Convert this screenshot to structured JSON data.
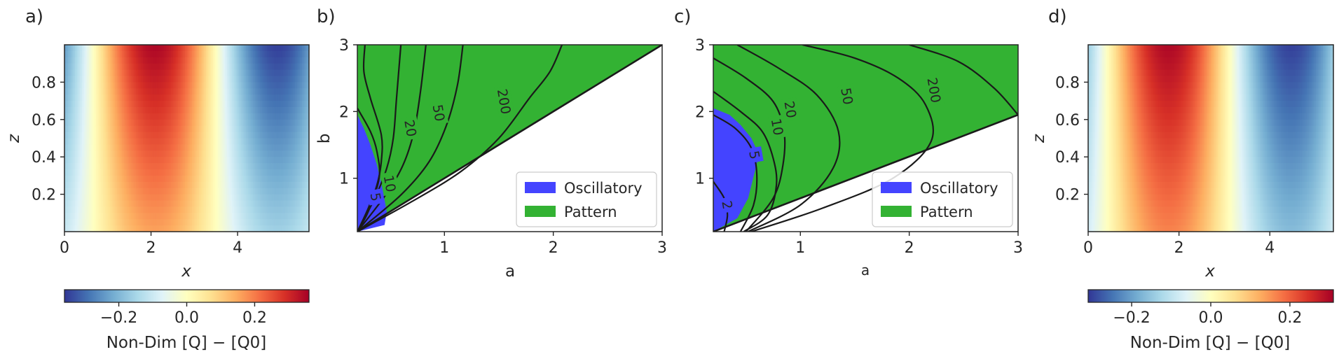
{
  "colors": {
    "oscillatory": "#4444ff",
    "pattern": "#33b233",
    "contour": "#1a1a1a",
    "colormap": "RdYlBu_r"
  },
  "chart_data": [
    {
      "panel_label": "a)",
      "type": "heatmap",
      "xlabel": "x",
      "ylabel": "z",
      "xlim": [
        0,
        5.65
      ],
      "ylim": [
        0,
        1
      ],
      "xticks": [
        "0",
        "2",
        "4"
      ],
      "xtick_values": [
        0,
        2,
        4
      ],
      "yticks": [
        "0.2",
        "0.4",
        "0.6",
        "0.8"
      ],
      "ytick_values": [
        0.2,
        0.4,
        0.6,
        0.8
      ],
      "field": "amplitude * sin(2*pi*(x - 0.68)/5.65) * (0.45 + 0.55*z)",
      "amplitude": 0.35,
      "period": 5.65,
      "colorbar": {
        "label": "Non-Dim [Q] − [Q0]",
        "range": [
          -0.36,
          0.36
        ],
        "ticks": [
          "−0.2",
          "0.0",
          "0.2"
        ],
        "tick_values": [
          -0.2,
          0.0,
          0.2
        ]
      }
    },
    {
      "panel_label": "b)",
      "type": "area",
      "xlabel": "a",
      "ylabel": "b",
      "xlim": [
        0.2,
        3
      ],
      "ylim": [
        0.2,
        3
      ],
      "xticks": [
        "1",
        "2",
        "3"
      ],
      "xtick_values": [
        1,
        2,
        3
      ],
      "yticks": [
        "1",
        "2",
        "3"
      ],
      "ytick_values": [
        1,
        2,
        3
      ],
      "regions": [
        {
          "name": "Oscillatory",
          "boundary": [
            [
              0.2,
              1.95
            ],
            [
              0.26,
              1.75
            ],
            [
              0.32,
              1.5
            ],
            [
              0.38,
              1.2
            ],
            [
              0.43,
              0.85
            ],
            [
              0.47,
              0.5
            ],
            [
              0.45,
              0.3
            ],
            [
              0.2,
              0.2
            ]
          ]
        },
        {
          "name": "Pattern",
          "boundary": [
            [
              0.2,
              0.2
            ],
            [
              3,
              3
            ],
            [
              3,
              3
            ],
            [
              0.2,
              3
            ]
          ]
        }
      ],
      "pattern_lower_edge": [
        [
          0.2,
          0.2
        ],
        [
          3,
          3
        ]
      ],
      "contours": [
        {
          "label": "",
          "points": [
            [
              0.2,
              2.05
            ],
            [
              0.32,
              1.7
            ],
            [
              0.38,
              1.4
            ],
            [
              0.4,
              1.0
            ],
            [
              0.3,
              0.5
            ],
            [
              0.2,
              0.2
            ]
          ]
        },
        {
          "label": "5",
          "points": [
            [
              0.2,
              0.2
            ],
            [
              0.3,
              0.55
            ],
            [
              0.38,
              0.9
            ],
            [
              0.42,
              1.25
            ],
            [
              0.42,
              1.65
            ],
            [
              0.32,
              2.2
            ],
            [
              0.26,
              2.6
            ],
            [
              0.27,
              3.0
            ]
          ]
        },
        {
          "label": "10",
          "points": [
            [
              0.2,
              0.2
            ],
            [
              0.36,
              0.7
            ],
            [
              0.47,
              1.15
            ],
            [
              0.53,
              1.6
            ],
            [
              0.56,
              2.2
            ],
            [
              0.6,
              3.0
            ]
          ]
        },
        {
          "label": "20",
          "points": [
            [
              0.2,
              0.2
            ],
            [
              0.46,
              0.75
            ],
            [
              0.62,
              1.2
            ],
            [
              0.72,
              1.7
            ],
            [
              0.78,
              2.3
            ],
            [
              0.83,
              3.0
            ]
          ]
        },
        {
          "label": "50",
          "points": [
            [
              0.2,
              0.2
            ],
            [
              0.6,
              0.75
            ],
            [
              0.86,
              1.25
            ],
            [
              1.02,
              1.8
            ],
            [
              1.12,
              2.4
            ],
            [
              1.17,
              3.0
            ]
          ]
        },
        {
          "label": "200",
          "points": [
            [
              0.2,
              0.2
            ],
            [
              0.7,
              0.65
            ],
            [
              1.15,
              1.1
            ],
            [
              1.5,
              1.6
            ],
            [
              1.78,
              2.2
            ],
            [
              1.97,
              2.6
            ],
            [
              2.08,
              3.0
            ]
          ]
        }
      ],
      "contour_label_positions": {
        "5": [
          0.37,
          0.72
        ],
        "10": [
          0.5,
          0.92
        ],
        "20": [
          0.69,
          1.75
        ],
        "50": [
          0.95,
          1.98
        ],
        "200": [
          1.55,
          2.15
        ]
      },
      "legend": [
        "Oscillatory",
        "Pattern"
      ],
      "legend_position": "lower-right"
    },
    {
      "panel_label": "c)",
      "type": "area",
      "xlabel": "a",
      "ylabel": "",
      "xlim": [
        0.2,
        3
      ],
      "ylim": [
        0.2,
        3
      ],
      "xticks": [
        "1",
        "2",
        "3"
      ],
      "xtick_values": [
        1,
        2,
        3
      ],
      "yticks": [
        "1",
        "2",
        "3"
      ],
      "ytick_values": [
        1,
        2,
        3
      ],
      "regions": [
        {
          "name": "Oscillatory",
          "boundary": [
            [
              0.2,
              2.05
            ],
            [
              0.35,
              1.95
            ],
            [
              0.45,
              1.8
            ],
            [
              0.55,
              1.6
            ],
            [
              0.62,
              1.35
            ],
            [
              0.52,
              0.7
            ],
            [
              0.42,
              0.4
            ],
            [
              0.2,
              0.2
            ]
          ]
        },
        {
          "name": "Pattern",
          "boundary": [
            [
              0.2,
              0.2
            ],
            [
              3,
              1.95
            ],
            [
              3,
              3
            ],
            [
              0.2,
              3
            ]
          ]
        }
      ],
      "pattern_lower_edge": [
        [
          0.2,
          0.2
        ],
        [
          3,
          1.95
        ]
      ],
      "contours": [
        {
          "label": "2",
          "points": [
            [
              0.2,
              0.95
            ],
            [
              0.3,
              0.7
            ],
            [
              0.33,
              0.45
            ],
            [
              0.3,
              0.2
            ]
          ]
        },
        {
          "label": "5",
          "points": [
            [
              0.2,
              1.95
            ],
            [
              0.4,
              1.75
            ],
            [
              0.55,
              1.45
            ],
            [
              0.6,
              1.05
            ],
            [
              0.57,
              0.6
            ],
            [
              0.45,
              0.2
            ]
          ]
        },
        {
          "label": "10",
          "points": [
            [
              0.2,
              2.3
            ],
            [
              0.45,
              2.0
            ],
            [
              0.65,
              1.7
            ],
            [
              0.75,
              1.3
            ],
            [
              0.78,
              0.9
            ],
            [
              0.7,
              0.45
            ],
            [
              0.48,
              0.2
            ]
          ]
        },
        {
          "label": "20",
          "points": [
            [
              0.2,
              2.8
            ],
            [
              0.5,
              2.5
            ],
            [
              0.75,
              2.15
            ],
            [
              0.85,
              1.7
            ],
            [
              0.84,
              1.2
            ],
            [
              0.75,
              0.7
            ],
            [
              0.5,
              0.2
            ]
          ]
        },
        {
          "label": "50",
          "points": [
            [
              0.42,
              3.0
            ],
            [
              0.8,
              2.65
            ],
            [
              1.15,
              2.25
            ],
            [
              1.35,
              1.7
            ],
            [
              1.3,
              1.15
            ],
            [
              1.0,
              0.6
            ],
            [
              0.52,
              0.2
            ]
          ]
        },
        {
          "label": "200",
          "points": [
            [
              1.02,
              3.0
            ],
            [
              1.5,
              2.8
            ],
            [
              1.9,
              2.5
            ],
            [
              2.15,
              2.1
            ],
            [
              2.2,
              1.55
            ],
            [
              1.85,
              1.0
            ],
            [
              1.2,
              0.55
            ],
            [
              0.55,
              0.2
            ]
          ]
        },
        {
          "label": "",
          "points": [
            [
              2.0,
              3.0
            ],
            [
              2.45,
              2.75
            ],
            [
              2.78,
              2.35
            ],
            [
              3.0,
              1.95
            ]
          ]
        }
      ],
      "contour_label_positions": {
        "2": [
          0.33,
          0.6
        ],
        "5": [
          0.58,
          1.35
        ],
        "10": [
          0.79,
          1.77
        ],
        "20": [
          0.91,
          2.03
        ],
        "50": [
          1.43,
          2.23
        ],
        "200": [
          2.23,
          2.32
        ]
      },
      "legend": [
        "Oscillatory",
        "Pattern"
      ],
      "legend_position": "lower-right"
    },
    {
      "panel_label": "d)",
      "type": "heatmap",
      "xlabel": "x",
      "ylabel": "z",
      "xlim": [
        0,
        5.4
      ],
      "ylim": [
        0,
        1
      ],
      "xticks": [
        "0",
        "2",
        "4"
      ],
      "xtick_values": [
        0,
        2,
        4
      ],
      "yticks": [
        "0.2",
        "0.4",
        "0.6",
        "0.8"
      ],
      "ytick_values": [
        0.2,
        0.4,
        0.6,
        0.8
      ],
      "field": "amplitude * sin(2*pi*(x - 0.42)/5.4) * (0.55 + 0.45*z)",
      "amplitude": 0.3,
      "period": 5.4,
      "colorbar": {
        "label": "Non-Dim [Q] − [Q0]",
        "range": [
          -0.31,
          0.31
        ],
        "ticks": [
          "−0.2",
          "0.0",
          "0.2"
        ],
        "tick_values": [
          -0.2,
          0.0,
          0.2
        ]
      }
    }
  ]
}
